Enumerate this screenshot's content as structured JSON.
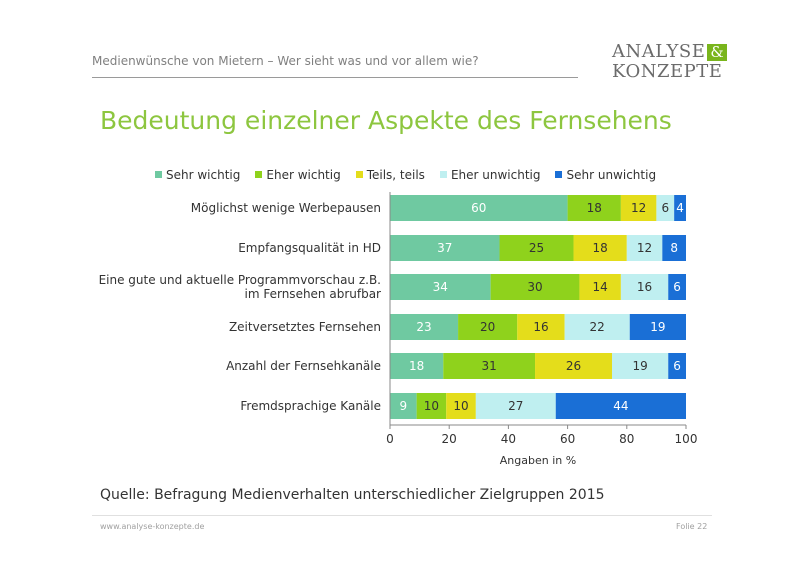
{
  "header": {
    "subtitle": "Medienwünsche von Mietern – Wer sieht was und vor allem wie?",
    "logo_line1": "ANALYSE",
    "logo_amp": "&",
    "logo_line2": "KONZEPTE"
  },
  "chart_data": {
    "type": "bar",
    "orientation": "horizontal",
    "stacked": true,
    "title": "Bedeutung einzelner Aspekte des Fernsehens",
    "xlabel": "Angaben in %",
    "xlim": [
      0,
      100
    ],
    "xticks": [
      0,
      20,
      40,
      60,
      80,
      100
    ],
    "legend_position": "top",
    "categories": [
      [
        "Möglichst wenige Werbepausen"
      ],
      [
        "Empfangsqualität in HD"
      ],
      [
        "Eine gute und aktuelle Programmvorschau z.B.",
        "im Fernsehen abrufbar"
      ],
      [
        "Zeitversetztes Fernsehen"
      ],
      [
        "Anzahl der Fernsehkanäle"
      ],
      [
        "Fremdsprachige Kanäle"
      ]
    ],
    "series": [
      {
        "name": "Sehr wichtig",
        "color": "#6fc9a1",
        "label_color": "#ffffff",
        "values": [
          60,
          37,
          34,
          23,
          18,
          9
        ]
      },
      {
        "name": "Eher wichtig",
        "color": "#8fd21c",
        "label_color": "#333333",
        "values": [
          18,
          25,
          30,
          20,
          31,
          10
        ]
      },
      {
        "name": "Teils, teils",
        "color": "#e4dd1b",
        "label_color": "#333333",
        "values": [
          12,
          18,
          14,
          16,
          26,
          10
        ]
      },
      {
        "name": "Eher unwichtig",
        "color": "#bfeff0",
        "label_color": "#333333",
        "values": [
          6,
          12,
          16,
          22,
          19,
          27
        ]
      },
      {
        "name": "Sehr unwichtig",
        "color": "#1a6fd6",
        "label_color": "#ffffff",
        "values": [
          4,
          8,
          6,
          19,
          6,
          44
        ]
      }
    ]
  },
  "source": "Quelle: Befragung Medienverhalten unterschiedlicher Zielgruppen 2015",
  "footer": {
    "url": "www.analyse-konzepte.de",
    "page": "Folie 22"
  }
}
